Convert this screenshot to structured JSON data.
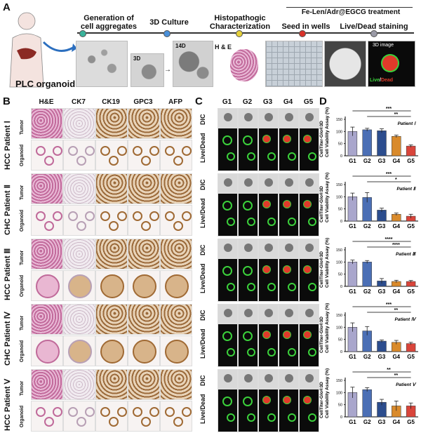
{
  "panels": {
    "A": "A",
    "B": "B",
    "C": "C",
    "D": "D"
  },
  "workflow": {
    "organoid_label": "PLC organoid",
    "steps": [
      {
        "title": "Generation of\ncell aggregates"
      },
      {
        "title": "3D Culture"
      },
      {
        "title": "Histopathogic\nCharacterization"
      },
      {
        "title": "Seed in wells"
      },
      {
        "title": "Live/Dead staining"
      }
    ],
    "treatment_title": "Fe-Len/Adr@EGCG treatment",
    "labels": {
      "d3": "3D",
      "d14": "14D",
      "he": "H & E",
      "img3d": "3D image",
      "live": "Live",
      "slash": "/",
      "dead": "Dead"
    },
    "colors": {
      "dot1": "#39b39b",
      "dot2": "#4a90d9",
      "dot3": "#e6d13a",
      "dot4": "#d9322a",
      "dot5": "#9a9aa6"
    }
  },
  "histology": {
    "columns": [
      "H&E",
      "CK7",
      "CK19",
      "GPC3",
      "AFP"
    ],
    "patients": [
      {
        "label": "HCC  Patient Ⅰ"
      },
      {
        "label": "CHC  Patient Ⅱ"
      },
      {
        "label": "HCC  Patient Ⅲ"
      },
      {
        "label": "CHC  Patient Ⅳ"
      },
      {
        "label": "HCC  Patient Ⅴ"
      }
    ],
    "row_labels": {
      "tumor": "Tumor",
      "organoid": "Organoid"
    }
  },
  "imaging": {
    "groups": [
      "G1",
      "G2",
      "G3",
      "G4",
      "G5"
    ],
    "row_labels": {
      "dic": "DIC",
      "livedead": "Live/Dead"
    }
  },
  "chart_data": [
    {
      "type": "bar",
      "title": "Patient Ⅰ",
      "categories": [
        "G1",
        "G2",
        "G3",
        "G4",
        "G5"
      ],
      "values": [
        100,
        107,
        103,
        80,
        40
      ],
      "errors": [
        18,
        6,
        8,
        5,
        5
      ],
      "ylabel": "CellTiter-Glo®3D\nCell Viability Assay (%)",
      "ylim": [
        0,
        150
      ],
      "yticks": [
        0,
        50,
        100,
        150
      ],
      "sig": [
        {
          "from": 0,
          "to": 4,
          "label": "***"
        },
        {
          "from": 1,
          "to": 4,
          "label": "**"
        }
      ]
    },
    {
      "type": "bar",
      "title": "Patient Ⅱ",
      "categories": [
        "G1",
        "G2",
        "G3",
        "G4",
        "G5"
      ],
      "values": [
        100,
        97,
        45,
        28,
        20
      ],
      "errors": [
        15,
        20,
        8,
        5,
        8
      ],
      "ylabel": "CellTiter-Glo®3D\nCell Viability Assay (%)",
      "ylim": [
        0,
        150
      ],
      "yticks": [
        0,
        50,
        100,
        150
      ],
      "sig": [
        {
          "from": 0,
          "to": 4,
          "label": "***"
        },
        {
          "from": 1,
          "to": 4,
          "label": "*"
        }
      ]
    },
    {
      "type": "bar",
      "title": "Patient Ⅲ",
      "categories": [
        "G1",
        "G2",
        "G3",
        "G4",
        "G5"
      ],
      "values": [
        100,
        100,
        22,
        20,
        20
      ],
      "errors": [
        8,
        6,
        10,
        5,
        4
      ],
      "ylabel": "CellTiter-Glo®3D\nCell Viability Assay (%)",
      "ylim": [
        0,
        150
      ],
      "yticks": [
        0,
        50,
        100,
        150
      ],
      "sig": [
        {
          "from": 0,
          "to": 4,
          "label": "****"
        },
        {
          "from": 1,
          "to": 4,
          "label": "****"
        }
      ]
    },
    {
      "type": "bar",
      "title": "Patient Ⅳ",
      "categories": [
        "G1",
        "G2",
        "G3",
        "G4",
        "G5"
      ],
      "values": [
        100,
        85,
        43,
        38,
        33
      ],
      "errors": [
        18,
        18,
        5,
        8,
        5
      ],
      "ylabel": "CellTiter-Glo®3D\nCell Viability Assay (%)",
      "ylim": [
        0,
        150
      ],
      "yticks": [
        0,
        50,
        100,
        150
      ],
      "sig": [
        {
          "from": 0,
          "to": 4,
          "label": "***"
        },
        {
          "from": 1,
          "to": 4,
          "label": "**"
        }
      ]
    },
    {
      "type": "bar",
      "title": "Patient Ⅴ",
      "categories": [
        "G1",
        "G2",
        "G3",
        "G4",
        "G5"
      ],
      "values": [
        100,
        112,
        60,
        45,
        45
      ],
      "errors": [
        22,
        8,
        12,
        20,
        12
      ],
      "ylabel": "CellTiter-Glo®3D\nCell Viability Assay (%)",
      "ylim": [
        0,
        150
      ],
      "yticks": [
        0,
        50,
        100,
        150
      ],
      "sig": [
        {
          "from": 0,
          "to": 4,
          "label": "**"
        },
        {
          "from": 1,
          "to": 4,
          "label": "**"
        }
      ]
    }
  ],
  "bar_colors": [
    "#a9a6cc",
    "#4b6fb5",
    "#2c4d8e",
    "#d98a2b",
    "#d9453b"
  ]
}
